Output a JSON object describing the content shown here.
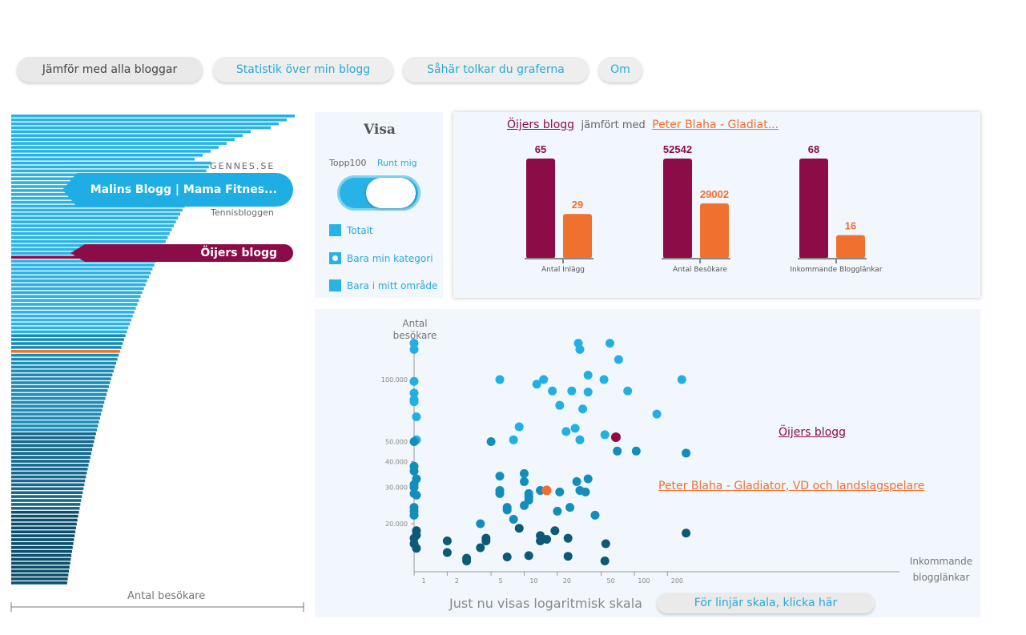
{
  "nav": {
    "tabs": [
      {
        "label": "Jämför med alla bloggar"
      },
      {
        "label": "Statistik över min blogg"
      },
      {
        "label": "Såhär tolkar du graferna"
      },
      {
        "label": "Om"
      }
    ]
  },
  "ranking": {
    "callout_top_label": "GENNES.SE",
    "callout_main": "Malins Blogg | Mama Fitnes...",
    "callout_bottom_label": "Tennisbloggen",
    "callout_own": "Öijers blogg",
    "axis_label": "Antal besökare",
    "colors": {
      "light": "#29b2e6",
      "dark": "#0b4f6c",
      "own": "#8c0c47",
      "compare": "#f07030"
    }
  },
  "visa": {
    "title": "Visa",
    "toggle_left": "Topp100",
    "toggle_right": "Runt mig",
    "options": [
      {
        "label": "Totalt"
      },
      {
        "label": "Bara min kategori"
      },
      {
        "label": "Bara i mitt område"
      }
    ]
  },
  "comparison": {
    "own_blog": "Öijers blogg",
    "compared_with": "jämfört med",
    "other_blog": "Peter Blaha - Gladiat...",
    "chart_data": {
      "type": "bar",
      "categories": [
        "Antal Inlägg",
        "Antal Besökare",
        "Inkommande Blogglänkar"
      ],
      "series": [
        {
          "name": "Öijers blogg",
          "values": [
            65,
            52542,
            68
          ],
          "color": "#8c0c47"
        },
        {
          "name": "Peter Blaha - Gladiat...",
          "values": [
            29,
            29002,
            16
          ],
          "color": "#f07030"
        }
      ]
    }
  },
  "scatter": {
    "ylabel": "Antal besökare",
    "xlabel": "Inkommande blogglänkar",
    "scale_note": "Just nu visas logaritmisk skala",
    "linear_button": "För linjär skala, klicka här",
    "own_label": "Öijers blogg",
    "other_label": "Peter Blaha - Gladiator, VD och landslagspelare",
    "chart_data": {
      "type": "scatter",
      "x_scale": "log",
      "y_scale": "log",
      "x_ticks": [
        "1",
        "2",
        "5",
        "10",
        "20",
        "50",
        "100",
        "200"
      ],
      "y_ticks": [
        "20.000",
        "30.000",
        "40.000",
        "50.000",
        "100.000"
      ],
      "highlight": [
        {
          "name": "Öijers blogg",
          "x": 68,
          "y": 52542,
          "color": "#8c0c47"
        },
        {
          "name": "Peter Blaha - Gladiator, VD och landslagspelare",
          "x": 16,
          "y": 29002,
          "color": "#f07030"
        }
      ],
      "points": [
        {
          "x": 1,
          "y": 150000
        },
        {
          "x": 1,
          "y": 140000
        },
        {
          "x": 1,
          "y": 98000
        },
        {
          "x": 1,
          "y": 86000
        },
        {
          "x": 1,
          "y": 80000
        },
        {
          "x": 1,
          "y": 78000
        },
        {
          "x": 1.05,
          "y": 66000
        },
        {
          "x": 1.05,
          "y": 51000
        },
        {
          "x": 1,
          "y": 50000
        },
        {
          "x": 1,
          "y": 38000
        },
        {
          "x": 1,
          "y": 36000
        },
        {
          "x": 1.05,
          "y": 33000
        },
        {
          "x": 1,
          "y": 31000
        },
        {
          "x": 1,
          "y": 30000
        },
        {
          "x": 1,
          "y": 28000
        },
        {
          "x": 1.05,
          "y": 27500
        },
        {
          "x": 1,
          "y": 24000
        },
        {
          "x": 1,
          "y": 23000
        },
        {
          "x": 1,
          "y": 22000
        },
        {
          "x": 1.05,
          "y": 18500
        },
        {
          "x": 1.05,
          "y": 17600
        },
        {
          "x": 1,
          "y": 17000
        },
        {
          "x": 1,
          "y": 16000
        },
        {
          "x": 1.05,
          "y": 15200
        },
        {
          "x": 2,
          "y": 16500
        },
        {
          "x": 2,
          "y": 14500
        },
        {
          "x": 3,
          "y": 13600
        },
        {
          "x": 3,
          "y": 13200
        },
        {
          "x": 4,
          "y": 20000
        },
        {
          "x": 4,
          "y": 15300
        },
        {
          "x": 4.5,
          "y": 17000
        },
        {
          "x": 4.5,
          "y": 16500
        },
        {
          "x": 5,
          "y": 50000
        },
        {
          "x": 6,
          "y": 100000
        },
        {
          "x": 6,
          "y": 34000
        },
        {
          "x": 6,
          "y": 29000
        },
        {
          "x": 6,
          "y": 28000
        },
        {
          "x": 7,
          "y": 24000
        },
        {
          "x": 7,
          "y": 23300
        },
        {
          "x": 7,
          "y": 13800
        },
        {
          "x": 8,
          "y": 51000
        },
        {
          "x": 8,
          "y": 21000
        },
        {
          "x": 9,
          "y": 59000
        },
        {
          "x": 9,
          "y": 19000
        },
        {
          "x": 10,
          "y": 35000
        },
        {
          "x": 10,
          "y": 32000
        },
        {
          "x": 10,
          "y": 24500
        },
        {
          "x": 11,
          "y": 28000
        },
        {
          "x": 11,
          "y": 27000
        },
        {
          "x": 11,
          "y": 26000
        },
        {
          "x": 11,
          "y": 14000
        },
        {
          "x": 13,
          "y": 95000
        },
        {
          "x": 14,
          "y": 29000
        },
        {
          "x": 14,
          "y": 17500
        },
        {
          "x": 14,
          "y": 16500
        },
        {
          "x": 15,
          "y": 100000
        },
        {
          "x": 16,
          "y": 16800
        },
        {
          "x": 18,
          "y": 88000
        },
        {
          "x": 19,
          "y": 18500
        },
        {
          "x": 20,
          "y": 23000
        },
        {
          "x": 21,
          "y": 75000
        },
        {
          "x": 21,
          "y": 28500
        },
        {
          "x": 24,
          "y": 56000
        },
        {
          "x": 25,
          "y": 17000
        },
        {
          "x": 25,
          "y": 13900
        },
        {
          "x": 26,
          "y": 24000
        },
        {
          "x": 27,
          "y": 88000
        },
        {
          "x": 29,
          "y": 58000
        },
        {
          "x": 30,
          "y": 32000
        },
        {
          "x": 31,
          "y": 150000
        },
        {
          "x": 32,
          "y": 140000
        },
        {
          "x": 32,
          "y": 51000
        },
        {
          "x": 32,
          "y": 29000
        },
        {
          "x": 34,
          "y": 72000
        },
        {
          "x": 36,
          "y": 28500
        },
        {
          "x": 38,
          "y": 33000
        },
        {
          "x": 38,
          "y": 105000
        },
        {
          "x": 38,
          "y": 87000
        },
        {
          "x": 44,
          "y": 22000
        },
        {
          "x": 53,
          "y": 100000
        },
        {
          "x": 54,
          "y": 54000
        },
        {
          "x": 55,
          "y": 16000
        },
        {
          "x": 54,
          "y": 13200
        },
        {
          "x": 60,
          "y": 150000
        },
        {
          "x": 70,
          "y": 45000
        },
        {
          "x": 72,
          "y": 125000
        },
        {
          "x": 87,
          "y": 88000
        },
        {
          "x": 104,
          "y": 45000
        },
        {
          "x": 160,
          "y": 68000
        },
        {
          "x": 270,
          "y": 100000
        },
        {
          "x": 295,
          "y": 44000
        },
        {
          "x": 295,
          "y": 18000
        }
      ]
    }
  }
}
